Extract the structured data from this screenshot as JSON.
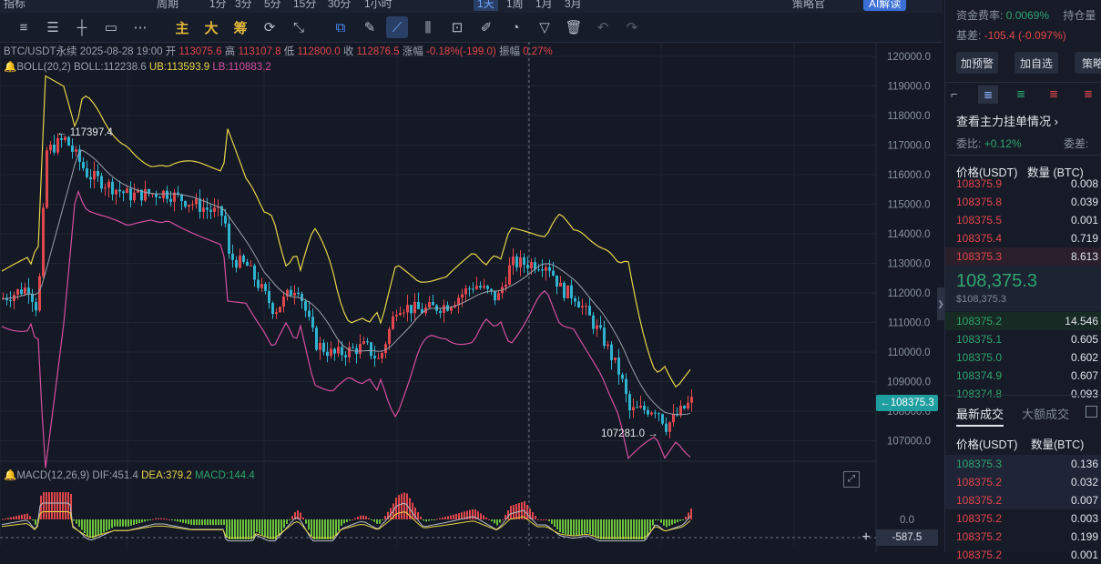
{
  "topbar": {
    "items": [
      "指标",
      "周期",
      "1分",
      "3分",
      "5分",
      "15分",
      "30分",
      "1小时",
      "1天",
      "1周",
      "1月",
      "3月",
      "AI解读",
      "策略官"
    ]
  },
  "toolbar": {
    "zhu": "主",
    "da": "大",
    "chou": "筹"
  },
  "symbol_info": {
    "symbol": "BTC/USDT永续",
    "datetime": "2025-08-28 19:00",
    "open_label": "开",
    "open": "113075.6",
    "high_label": "高",
    "high": "113107.8",
    "low_label": "低",
    "low": "112800.0",
    "close_label": "收",
    "close": "112876.5",
    "change_label": "涨幅",
    "change": "-0.18%(-199.0)",
    "amp_label": "振幅",
    "amp": "0.27%"
  },
  "boll": {
    "label": "BOLL(20,2)",
    "boll": "BOLL:112238.6",
    "ub": "UB:113593.9",
    "lb": "LB:110883.2"
  },
  "macd": {
    "label": "MACD(12,26,9)",
    "dif": "DIF:451.4",
    "dea": "DEA:379.2",
    "macd": "MACD:144.4"
  },
  "annotations": {
    "high_mark": "117397.4",
    "low_mark": "107281.0"
  },
  "price_axis": [
    "120000.0",
    "119000.0",
    "118000.0",
    "117000.0",
    "116000.0",
    "115000.0",
    "114000.0",
    "113000.0",
    "112000.0",
    "111000.0",
    "110000.0",
    "109000.0",
    "108000.0",
    "107000.0"
  ],
  "macd_axis": {
    "zero": "0.0",
    "current": "-587.5"
  },
  "current_price_tag": "108375.3",
  "colors": {
    "up": "#e0474c",
    "down": "#2fb3cf",
    "boll_mid": "#9aa0aa",
    "ub": "#e8d44a",
    "lb": "#d54fa0",
    "accent": "#1f9ea0"
  },
  "right_panel": {
    "funding_label": "资金费率:",
    "funding": "0.0069%",
    "oi_label": "持仓量",
    "basis_label": "基差:",
    "basis": "-105.4 (-0.097%)",
    "buttons": [
      "加预警",
      "加自选",
      "策略"
    ],
    "main_orders": "查看主力挂单情况",
    "ratio_label": "委比:",
    "ratio": "+0.12%",
    "diff_label": "委差:",
    "ob_header_price": "价格(USDT)",
    "ob_header_qty": "数量 (BTC)",
    "asks": [
      {
        "p": "108375.9",
        "q": "0.008"
      },
      {
        "p": "108375.8",
        "q": "0.039"
      },
      {
        "p": "108375.5",
        "q": "0.001"
      },
      {
        "p": "108375.4",
        "q": "0.719"
      },
      {
        "p": "108375.3",
        "q": "8.613"
      }
    ],
    "mid_price": "108,375.3",
    "mid_sub": "$108,375.3",
    "bids": [
      {
        "p": "108375.2",
        "q": "14.546"
      },
      {
        "p": "108375.1",
        "q": "0.605"
      },
      {
        "p": "108375.0",
        "q": "0.602"
      },
      {
        "p": "108374.9",
        "q": "0.607"
      },
      {
        "p": "108374.8",
        "q": "0.093"
      }
    ],
    "trades_tab": "最新成交",
    "big_tab": "大额成交",
    "trades_header_price": "价格(USDT)",
    "trades_header_qty": "数量(BTC)",
    "trades": [
      {
        "p": "108375.3",
        "q": "0.136",
        "side": "buy"
      },
      {
        "p": "108375.2",
        "q": "0.032",
        "side": "sell"
      },
      {
        "p": "108375.2",
        "q": "0.007",
        "side": "sell"
      },
      {
        "p": "108375.2",
        "q": "0.003",
        "side": "sell"
      },
      {
        "p": "108375.2",
        "q": "0.199",
        "side": "sell"
      },
      {
        "p": "108375.2",
        "q": "0.001",
        "side": "sell"
      }
    ]
  }
}
